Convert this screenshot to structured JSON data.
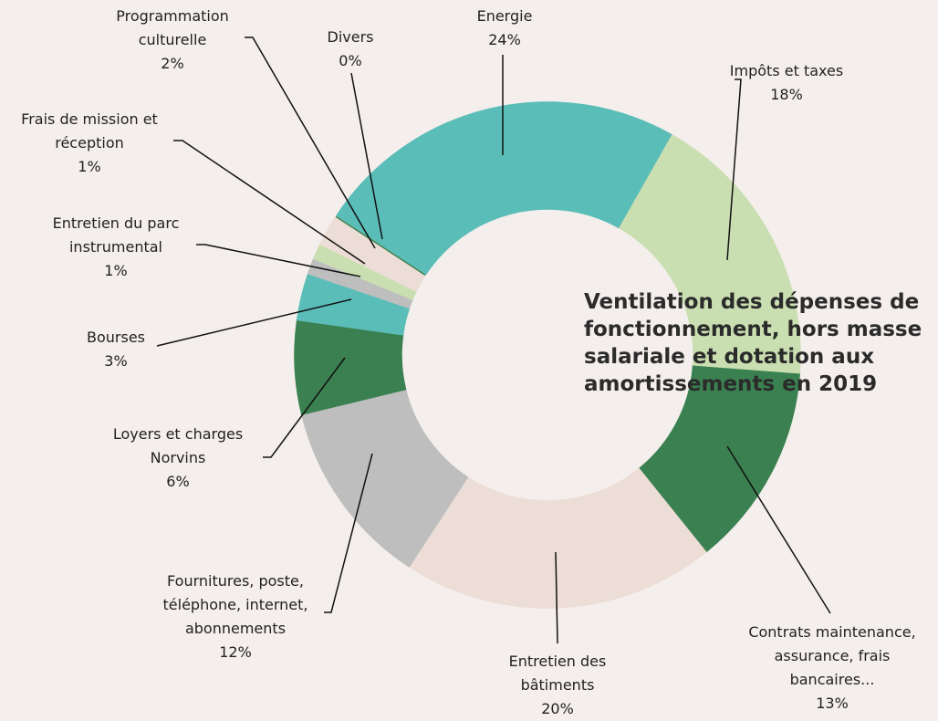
{
  "chart_data": {
    "type": "donut",
    "title": "Ventilation des dépenses de fonctionnement, hors masse salariale et dotation aux amortissements en 2019",
    "categories": [
      "Energie",
      "Impôts et taxes",
      "Contrats maintenance,\nassurance, frais\nbancaires...",
      "Entretien des\nbâtiments",
      "Fournitures, poste,\ntéléphone, internet,\nabonnements",
      "Loyers et charges\nNorvins",
      "Bourses",
      "Entretien du parc\ninstrumental",
      "Frais de mission et\nréception",
      "Programmation\nculturelle",
      "Divers"
    ],
    "values": [
      24,
      18,
      13,
      20,
      12,
      6,
      3,
      1,
      1,
      2,
      0
    ],
    "value_labels": [
      "24%",
      "18%",
      "13%",
      "20%",
      "12%",
      "6%",
      "3%",
      "1%",
      "1%",
      "2%",
      "0%"
    ],
    "colors": [
      "#5bbdb8",
      "#cadfb1",
      "#3b8050",
      "#ecddd6",
      "#bebebe",
      "#3b8050",
      "#5bbdb8",
      "#bebebe",
      "#cadfb1",
      "#ecddd6",
      "#3b8050"
    ]
  }
}
